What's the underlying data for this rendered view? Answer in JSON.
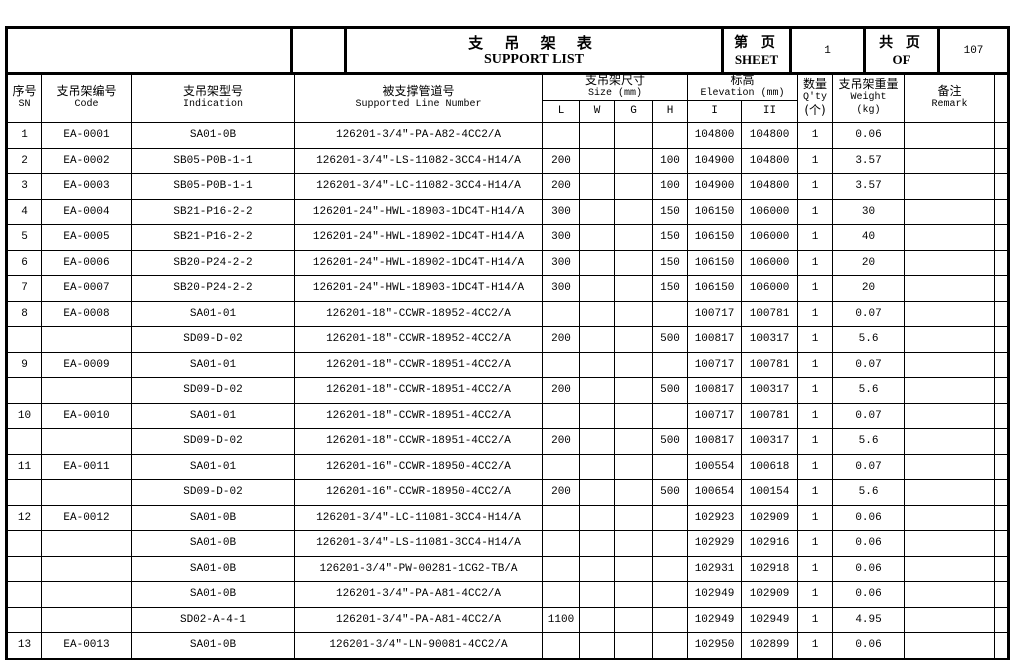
{
  "title": {
    "cn": "支 吊 架 表",
    "en": "SUPPORT  LIST"
  },
  "sheet": {
    "label_cn": "第 页",
    "label_en": "SHEET",
    "value": "1"
  },
  "total": {
    "label_cn": "共 页",
    "label_en": "OF",
    "value": "107"
  },
  "headers": {
    "sn": {
      "cn": "序号",
      "en": "SN"
    },
    "code": {
      "cn": "支吊架编号",
      "en": "Code"
    },
    "indication": {
      "cn": "支吊架型号",
      "en": "Indication"
    },
    "line": {
      "cn": "被支撑管道号",
      "en": "Supported Line Number"
    },
    "size": {
      "cn": "支吊架尺寸",
      "en": "Size (mm)",
      "sub": [
        "L",
        "W",
        "G",
        "H"
      ]
    },
    "elevation": {
      "cn": "标高",
      "en": "Elevation (mm)",
      "sub": [
        "I",
        "II"
      ]
    },
    "qty": {
      "cn": "数量",
      "en": "Q'ty",
      "unit": "(个)"
    },
    "weight": {
      "cn": "支吊架重量",
      "en": "Weight",
      "unit": "(kg)"
    },
    "remark": {
      "cn": "备注",
      "en": "Remark"
    }
  },
  "rows": [
    {
      "sn": "1",
      "code": "EA-0001",
      "ind": "SA01-0B",
      "line": "126201-3/4\"-PA-A82-4CC2/A",
      "L": "",
      "W": "",
      "G": "",
      "H": "",
      "e1": "104800",
      "e2": "104800",
      "qty": "1",
      "wt": "0.06",
      "rm": ""
    },
    {
      "sn": "2",
      "code": "EA-0002",
      "ind": "SB05-P0B-1-1",
      "line": "126201-3/4\"-LS-11082-3CC4-H14/A",
      "L": "200",
      "W": "",
      "G": "",
      "H": "100",
      "e1": "104900",
      "e2": "104800",
      "qty": "1",
      "wt": "3.57",
      "rm": ""
    },
    {
      "sn": "3",
      "code": "EA-0003",
      "ind": "SB05-P0B-1-1",
      "line": "126201-3/4\"-LC-11082-3CC4-H14/A",
      "L": "200",
      "W": "",
      "G": "",
      "H": "100",
      "e1": "104900",
      "e2": "104800",
      "qty": "1",
      "wt": "3.57",
      "rm": ""
    },
    {
      "sn": "4",
      "code": "EA-0004",
      "ind": "SB21-P16-2-2",
      "line": "126201-24\"-HWL-18903-1DC4T-H14/A",
      "L": "300",
      "W": "",
      "G": "",
      "H": "150",
      "e1": "106150",
      "e2": "106000",
      "qty": "1",
      "wt": "30",
      "rm": ""
    },
    {
      "sn": "5",
      "code": "EA-0005",
      "ind": "SB21-P16-2-2",
      "line": "126201-24\"-HWL-18902-1DC4T-H14/A",
      "L": "300",
      "W": "",
      "G": "",
      "H": "150",
      "e1": "106150",
      "e2": "106000",
      "qty": "1",
      "wt": "40",
      "rm": ""
    },
    {
      "sn": "6",
      "code": "EA-0006",
      "ind": "SB20-P24-2-2",
      "line": "126201-24\"-HWL-18902-1DC4T-H14/A",
      "L": "300",
      "W": "",
      "G": "",
      "H": "150",
      "e1": "106150",
      "e2": "106000",
      "qty": "1",
      "wt": "20",
      "rm": ""
    },
    {
      "sn": "7",
      "code": "EA-0007",
      "ind": "SB20-P24-2-2",
      "line": "126201-24\"-HWL-18903-1DC4T-H14/A",
      "L": "300",
      "W": "",
      "G": "",
      "H": "150",
      "e1": "106150",
      "e2": "106000",
      "qty": "1",
      "wt": "20",
      "rm": ""
    },
    {
      "sn": "8",
      "code": "EA-0008",
      "ind": "SA01-01",
      "line": "126201-18\"-CCWR-18952-4CC2/A",
      "L": "",
      "W": "",
      "G": "",
      "H": "",
      "e1": "100717",
      "e2": "100781",
      "qty": "1",
      "wt": "0.07",
      "rm": ""
    },
    {
      "sn": "",
      "code": "",
      "ind": "SD09-D-02",
      "line": "126201-18\"-CCWR-18952-4CC2/A",
      "L": "200",
      "W": "",
      "G": "",
      "H": "500",
      "e1": "100817",
      "e2": "100317",
      "qty": "1",
      "wt": "5.6",
      "rm": ""
    },
    {
      "sn": "9",
      "code": "EA-0009",
      "ind": "SA01-01",
      "line": "126201-18\"-CCWR-18951-4CC2/A",
      "L": "",
      "W": "",
      "G": "",
      "H": "",
      "e1": "100717",
      "e2": "100781",
      "qty": "1",
      "wt": "0.07",
      "rm": ""
    },
    {
      "sn": "",
      "code": "",
      "ind": "SD09-D-02",
      "line": "126201-18\"-CCWR-18951-4CC2/A",
      "L": "200",
      "W": "",
      "G": "",
      "H": "500",
      "e1": "100817",
      "e2": "100317",
      "qty": "1",
      "wt": "5.6",
      "rm": ""
    },
    {
      "sn": "10",
      "code": "EA-0010",
      "ind": "SA01-01",
      "line": "126201-18\"-CCWR-18951-4CC2/A",
      "L": "",
      "W": "",
      "G": "",
      "H": "",
      "e1": "100717",
      "e2": "100781",
      "qty": "1",
      "wt": "0.07",
      "rm": ""
    },
    {
      "sn": "",
      "code": "",
      "ind": "SD09-D-02",
      "line": "126201-18\"-CCWR-18951-4CC2/A",
      "L": "200",
      "W": "",
      "G": "",
      "H": "500",
      "e1": "100817",
      "e2": "100317",
      "qty": "1",
      "wt": "5.6",
      "rm": ""
    },
    {
      "sn": "11",
      "code": "EA-0011",
      "ind": "SA01-01",
      "line": "126201-16\"-CCWR-18950-4CC2/A",
      "L": "",
      "W": "",
      "G": "",
      "H": "",
      "e1": "100554",
      "e2": "100618",
      "qty": "1",
      "wt": "0.07",
      "rm": ""
    },
    {
      "sn": "",
      "code": "",
      "ind": "SD09-D-02",
      "line": "126201-16\"-CCWR-18950-4CC2/A",
      "L": "200",
      "W": "",
      "G": "",
      "H": "500",
      "e1": "100654",
      "e2": "100154",
      "qty": "1",
      "wt": "5.6",
      "rm": ""
    },
    {
      "sn": "12",
      "code": "EA-0012",
      "ind": "SA01-0B",
      "line": "126201-3/4\"-LC-11081-3CC4-H14/A",
      "L": "",
      "W": "",
      "G": "",
      "H": "",
      "e1": "102923",
      "e2": "102909",
      "qty": "1",
      "wt": "0.06",
      "rm": ""
    },
    {
      "sn": "",
      "code": "",
      "ind": "SA01-0B",
      "line": "126201-3/4\"-LS-11081-3CC4-H14/A",
      "L": "",
      "W": "",
      "G": "",
      "H": "",
      "e1": "102929",
      "e2": "102916",
      "qty": "1",
      "wt": "0.06",
      "rm": ""
    },
    {
      "sn": "",
      "code": "",
      "ind": "SA01-0B",
      "line": "126201-3/4\"-PW-00281-1CG2-TB/A",
      "L": "",
      "W": "",
      "G": "",
      "H": "",
      "e1": "102931",
      "e2": "102918",
      "qty": "1",
      "wt": "0.06",
      "rm": ""
    },
    {
      "sn": "",
      "code": "",
      "ind": "SA01-0B",
      "line": "126201-3/4\"-PA-A81-4CC2/A",
      "L": "",
      "W": "",
      "G": "",
      "H": "",
      "e1": "102949",
      "e2": "102909",
      "qty": "1",
      "wt": "0.06",
      "rm": ""
    },
    {
      "sn": "",
      "code": "",
      "ind": "SD02-A-4-1",
      "line": "126201-3/4\"-PA-A81-4CC2/A",
      "L": "1100",
      "W": "",
      "G": "",
      "H": "",
      "e1": "102949",
      "e2": "102949",
      "qty": "1",
      "wt": "4.95",
      "rm": ""
    },
    {
      "sn": "13",
      "code": "EA-0013",
      "ind": "SA01-0B",
      "line": "126201-3/4\"-LN-90081-4CC2/A",
      "L": "",
      "W": "",
      "G": "",
      "H": "",
      "e1": "102950",
      "e2": "102899",
      "qty": "1",
      "wt": "0.06",
      "rm": ""
    }
  ]
}
